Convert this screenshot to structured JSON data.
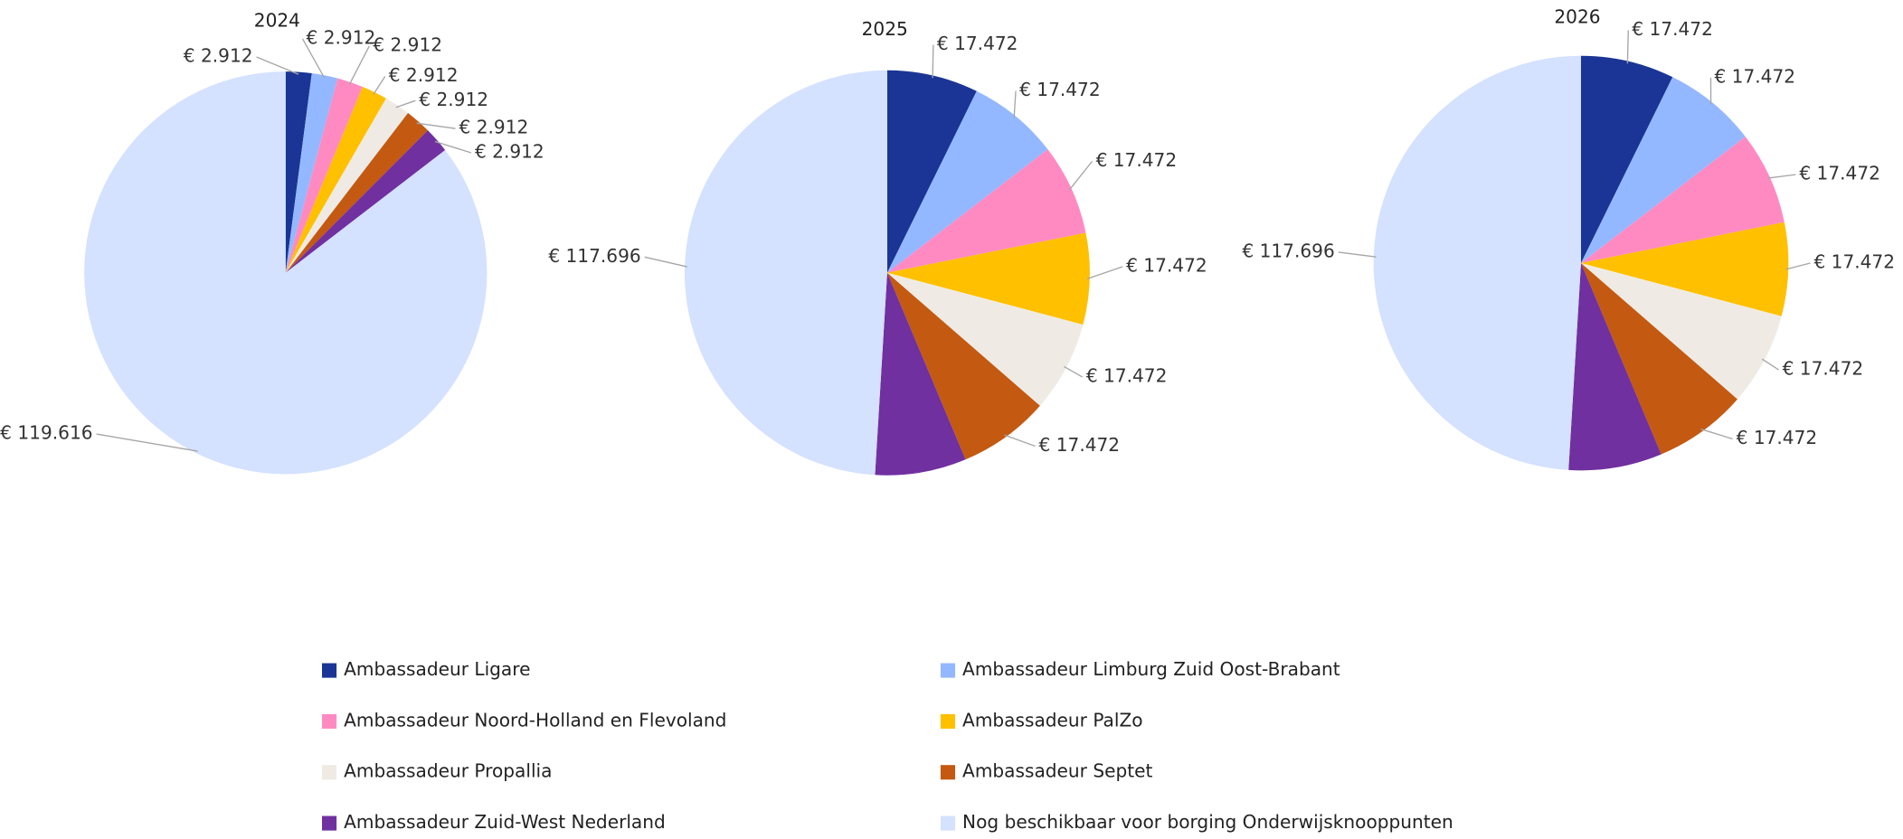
{
  "legend": {
    "names": [
      "Ambassadeur Ligare",
      "Ambassadeur Limburg Zuid Oost-Brabant",
      "Ambassadeur Noord-Holland en Flevoland",
      "Ambassadeur PalZo",
      "Ambassadeur Propallia",
      "Ambassadeur Septet",
      "Ambassadeur Zuid-West Nederland",
      "Nog beschikbaar voor borging Onderwijsknooppunten"
    ],
    "colors": [
      "#1a3595",
      "#94b8ff",
      "#ff8ac2",
      "#ffc000",
      "#efebe4",
      "#c45911",
      "#7030a0",
      "#d4e1ff"
    ]
  },
  "chart_data": [
    {
      "type": "pie",
      "title": "2024",
      "values": [
        2912,
        2912,
        2912,
        2912,
        2912,
        2912,
        2912,
        119616
      ],
      "value_labels": [
        "€ 2.912",
        "€ 2.912",
        "€ 2.912",
        "€ 2.912",
        "€ 2.912",
        "€ 2.912",
        "€ 2.912",
        "€ 119.616"
      ]
    },
    {
      "type": "pie",
      "title": "2025",
      "values": [
        17472,
        17472,
        17472,
        17472,
        17472,
        17472,
        17472,
        117696
      ],
      "value_labels": [
        "€ 17.472",
        "€ 17.472",
        "€ 17.472",
        "€ 17.472",
        "€ 17.472",
        "€ 17.472",
        null,
        "€ 117.696"
      ]
    },
    {
      "type": "pie",
      "title": "2026",
      "values": [
        17472,
        17472,
        17472,
        17472,
        17472,
        17472,
        17472,
        117696
      ],
      "value_labels": [
        "€ 17.472",
        "€ 17.472",
        "€ 17.472",
        "€ 17.472",
        "€ 17.472",
        "€ 17.472",
        null,
        "€ 117.696"
      ]
    }
  ]
}
